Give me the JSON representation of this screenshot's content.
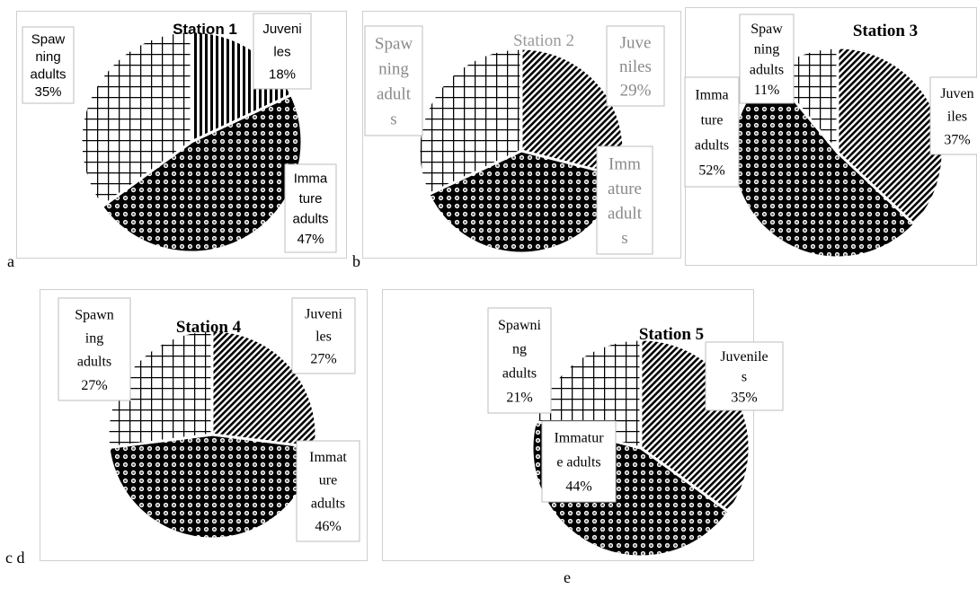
{
  "panel_letters": [
    "a",
    "b",
    "c d",
    "e"
  ],
  "chart_data": [
    {
      "type": "pie",
      "title": "Station 1",
      "font": "sans",
      "categories": [
        "Juveniles",
        "Immature adults",
        "Spawning adults"
      ],
      "values": [
        18,
        47,
        35
      ],
      "labels": [
        {
          "lines": [
            "Juveni",
            "les",
            "18%"
          ]
        },
        {
          "lines": [
            "Imma",
            "ture",
            "adults",
            "47%"
          ]
        },
        {
          "lines": [
            "Spaw",
            "ning",
            "adults",
            "35%"
          ]
        }
      ],
      "patterns": [
        "vertical-lines",
        "dots",
        "grid"
      ]
    },
    {
      "type": "pie",
      "title": "Station 2",
      "font": "serif",
      "grey": true,
      "categories": [
        "Juveniles",
        "Immature adults",
        "Spawning adults"
      ],
      "values": [
        29,
        39,
        32
      ],
      "labels": [
        {
          "lines": [
            "Juve",
            "niles",
            "29%"
          ]
        },
        {
          "lines": [
            "Imm",
            "ature",
            "adult",
            "s"
          ]
        },
        {
          "lines": [
            "Spaw",
            "ning",
            "adult",
            "s"
          ]
        }
      ],
      "patterns": [
        "diagonal",
        "dots",
        "grid"
      ]
    },
    {
      "type": "pie",
      "title": "Station 3",
      "font": "serif",
      "categories": [
        "Juveniles",
        "Immature adults",
        "Spawning adults"
      ],
      "values": [
        37,
        52,
        11
      ],
      "labels": [
        {
          "lines": [
            "Juven",
            "iles",
            "37%"
          ]
        },
        {
          "lines": [
            "Imma",
            "ture",
            "adults",
            "52%"
          ]
        },
        {
          "lines": [
            "Spaw",
            "ning",
            "adults",
            "11%"
          ]
        }
      ],
      "patterns": [
        "diagonal",
        "dots",
        "grid"
      ]
    },
    {
      "type": "pie",
      "title": "Station 4",
      "font": "serif",
      "categories": [
        "Juveniles",
        "Immature adults",
        "Spawning adults"
      ],
      "values": [
        27,
        46,
        27
      ],
      "labels": [
        {
          "lines": [
            "Juveni",
            "les",
            "27%"
          ]
        },
        {
          "lines": [
            "Immat",
            "ure",
            "adults",
            "46%"
          ]
        },
        {
          "lines": [
            "Spawn",
            "ing",
            "adults",
            "27%"
          ]
        }
      ],
      "patterns": [
        "diagonal",
        "dots",
        "grid"
      ]
    },
    {
      "type": "pie",
      "title": "Station 5",
      "font": "serif",
      "categories": [
        "Juveniles",
        "Immature adults",
        "Spawning adults"
      ],
      "values": [
        35,
        44,
        21
      ],
      "labels": [
        {
          "lines": [
            "Juvenile",
            "s",
            "35%"
          ]
        },
        {
          "lines": [
            "Immatur",
            "e adults",
            "44%"
          ]
        },
        {
          "lines": [
            "Spawni",
            "ng",
            "adults",
            "21%"
          ]
        }
      ],
      "patterns": [
        "diagonal",
        "dots",
        "grid"
      ]
    }
  ]
}
